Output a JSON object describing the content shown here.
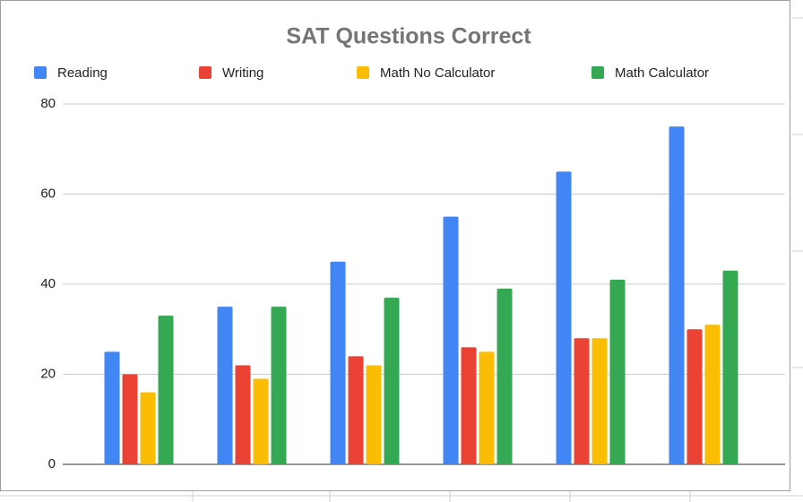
{
  "chart_data": {
    "type": "bar",
    "title": "SAT Questions Correct",
    "categories": [
      null,
      null,
      null,
      null,
      null,
      null
    ],
    "series": [
      {
        "name": "Reading",
        "color": "#4285f4",
        "values": [
          25,
          35,
          45,
          55,
          65,
          75
        ]
      },
      {
        "name": "Writing",
        "color": "#ea4335",
        "values": [
          20,
          22,
          24,
          26,
          28,
          30
        ]
      },
      {
        "name": "Math No Calculator",
        "color": "#fbbc04",
        "values": [
          16,
          19,
          22,
          25,
          28,
          31
        ]
      },
      {
        "name": "Math Calculator",
        "color": "#34a853",
        "values": [
          33,
          35,
          37,
          39,
          41,
          43
        ]
      }
    ],
    "ylim": [
      0,
      80
    ],
    "yticks": [
      0,
      20,
      40,
      60,
      80
    ],
    "grid": true,
    "legend": "top"
  }
}
